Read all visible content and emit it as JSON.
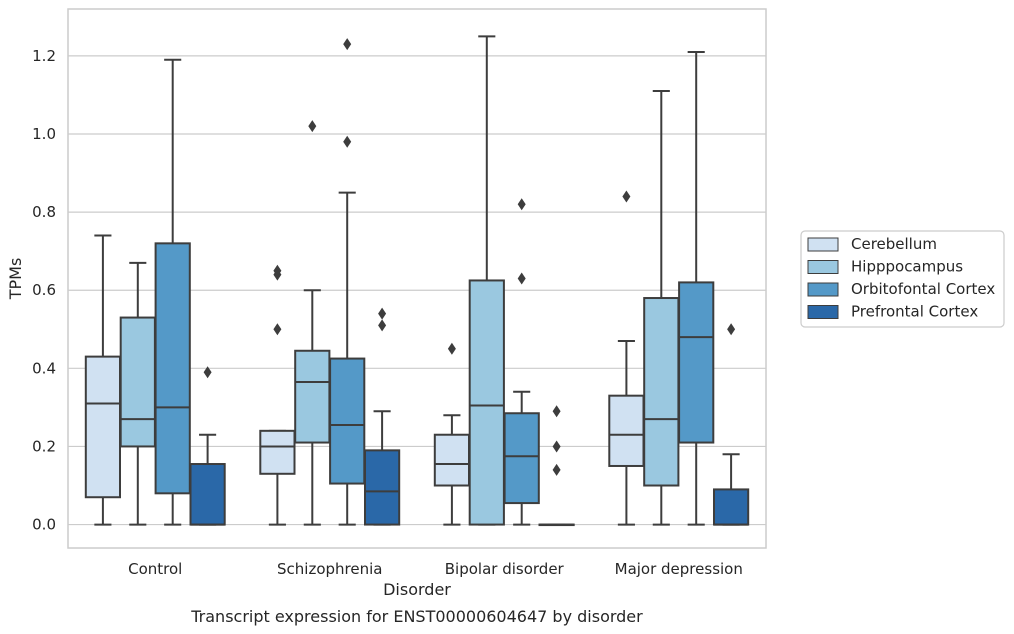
{
  "caption": "Transcript expression for ENST00000604647 by disorder",
  "chart_data": {
    "type": "box",
    "xlabel": "Disorder",
    "ylabel": "TPMs",
    "ylim": [
      -0.06,
      1.32
    ],
    "yticks": [
      "0.0",
      "0.2",
      "0.4",
      "0.6",
      "0.8",
      "1.0",
      "1.2"
    ],
    "grid": "horizontal",
    "legend_position": "right",
    "categories": [
      "Control",
      "Schizophrenia",
      "Bipolar disorder",
      "Major depression"
    ],
    "series": [
      {
        "name": "Cerebellum",
        "color": "#d0e1f2",
        "boxes": [
          {
            "whislo": 0.0,
            "q1": 0.07,
            "med": 0.31,
            "q3": 0.43,
            "whishi": 0.74,
            "fliers": []
          },
          {
            "whislo": 0.0,
            "q1": 0.13,
            "med": 0.2,
            "q3": 0.24,
            "whishi": 0.24,
            "fliers": [
              0.5,
              0.64,
              0.65
            ]
          },
          {
            "whislo": 0.0,
            "q1": 0.1,
            "med": 0.155,
            "q3": 0.23,
            "whishi": 0.28,
            "fliers": [
              0.45
            ]
          },
          {
            "whislo": 0.0,
            "q1": 0.15,
            "med": 0.23,
            "q3": 0.33,
            "whishi": 0.47,
            "fliers": [
              0.84
            ]
          }
        ]
      },
      {
        "name": "Hipppocampus",
        "color": "#9ac8e0",
        "boxes": [
          {
            "whislo": 0.0,
            "q1": 0.2,
            "med": 0.27,
            "q3": 0.53,
            "whishi": 0.67,
            "fliers": []
          },
          {
            "whislo": 0.0,
            "q1": 0.21,
            "med": 0.365,
            "q3": 0.445,
            "whishi": 0.6,
            "fliers": [
              1.02
            ]
          },
          {
            "whislo": 0.0,
            "q1": 0.0,
            "med": 0.305,
            "q3": 0.625,
            "whishi": 1.25,
            "fliers": []
          },
          {
            "whislo": 0.0,
            "q1": 0.1,
            "med": 0.27,
            "q3": 0.58,
            "whishi": 1.11,
            "fliers": []
          }
        ]
      },
      {
        "name": "Orbitofontal Cortex",
        "color": "#5499c8",
        "boxes": [
          {
            "whislo": 0.0,
            "q1": 0.08,
            "med": 0.3,
            "q3": 0.72,
            "whishi": 1.19,
            "fliers": []
          },
          {
            "whislo": 0.0,
            "q1": 0.105,
            "med": 0.255,
            "q3": 0.425,
            "whishi": 0.85,
            "fliers": [
              0.98,
              1.23
            ]
          },
          {
            "whislo": 0.0,
            "q1": 0.055,
            "med": 0.175,
            "q3": 0.285,
            "whishi": 0.34,
            "fliers": [
              0.63,
              0.82
            ]
          },
          {
            "whislo": 0.0,
            "q1": 0.21,
            "med": 0.48,
            "q3": 0.62,
            "whishi": 1.21,
            "fliers": []
          }
        ]
      },
      {
        "name": "Prefrontal Cortex",
        "color": "#2a68a8",
        "boxes": [
          {
            "whislo": 0.0,
            "q1": 0.0,
            "med": 0.0,
            "q3": 0.155,
            "whishi": 0.23,
            "fliers": [
              0.39
            ]
          },
          {
            "whislo": 0.0,
            "q1": 0.0,
            "med": 0.085,
            "q3": 0.19,
            "whishi": 0.29,
            "fliers": [
              0.51,
              0.54
            ]
          },
          {
            "whislo": 0.0,
            "q1": 0.0,
            "med": 0.0,
            "q3": 0.0,
            "whishi": 0.0,
            "fliers": [
              0.14,
              0.2,
              0.29
            ]
          },
          {
            "whislo": 0.0,
            "q1": 0.0,
            "med": 0.0,
            "q3": 0.09,
            "whishi": 0.18,
            "fliers": [
              0.5
            ]
          }
        ]
      }
    ]
  }
}
